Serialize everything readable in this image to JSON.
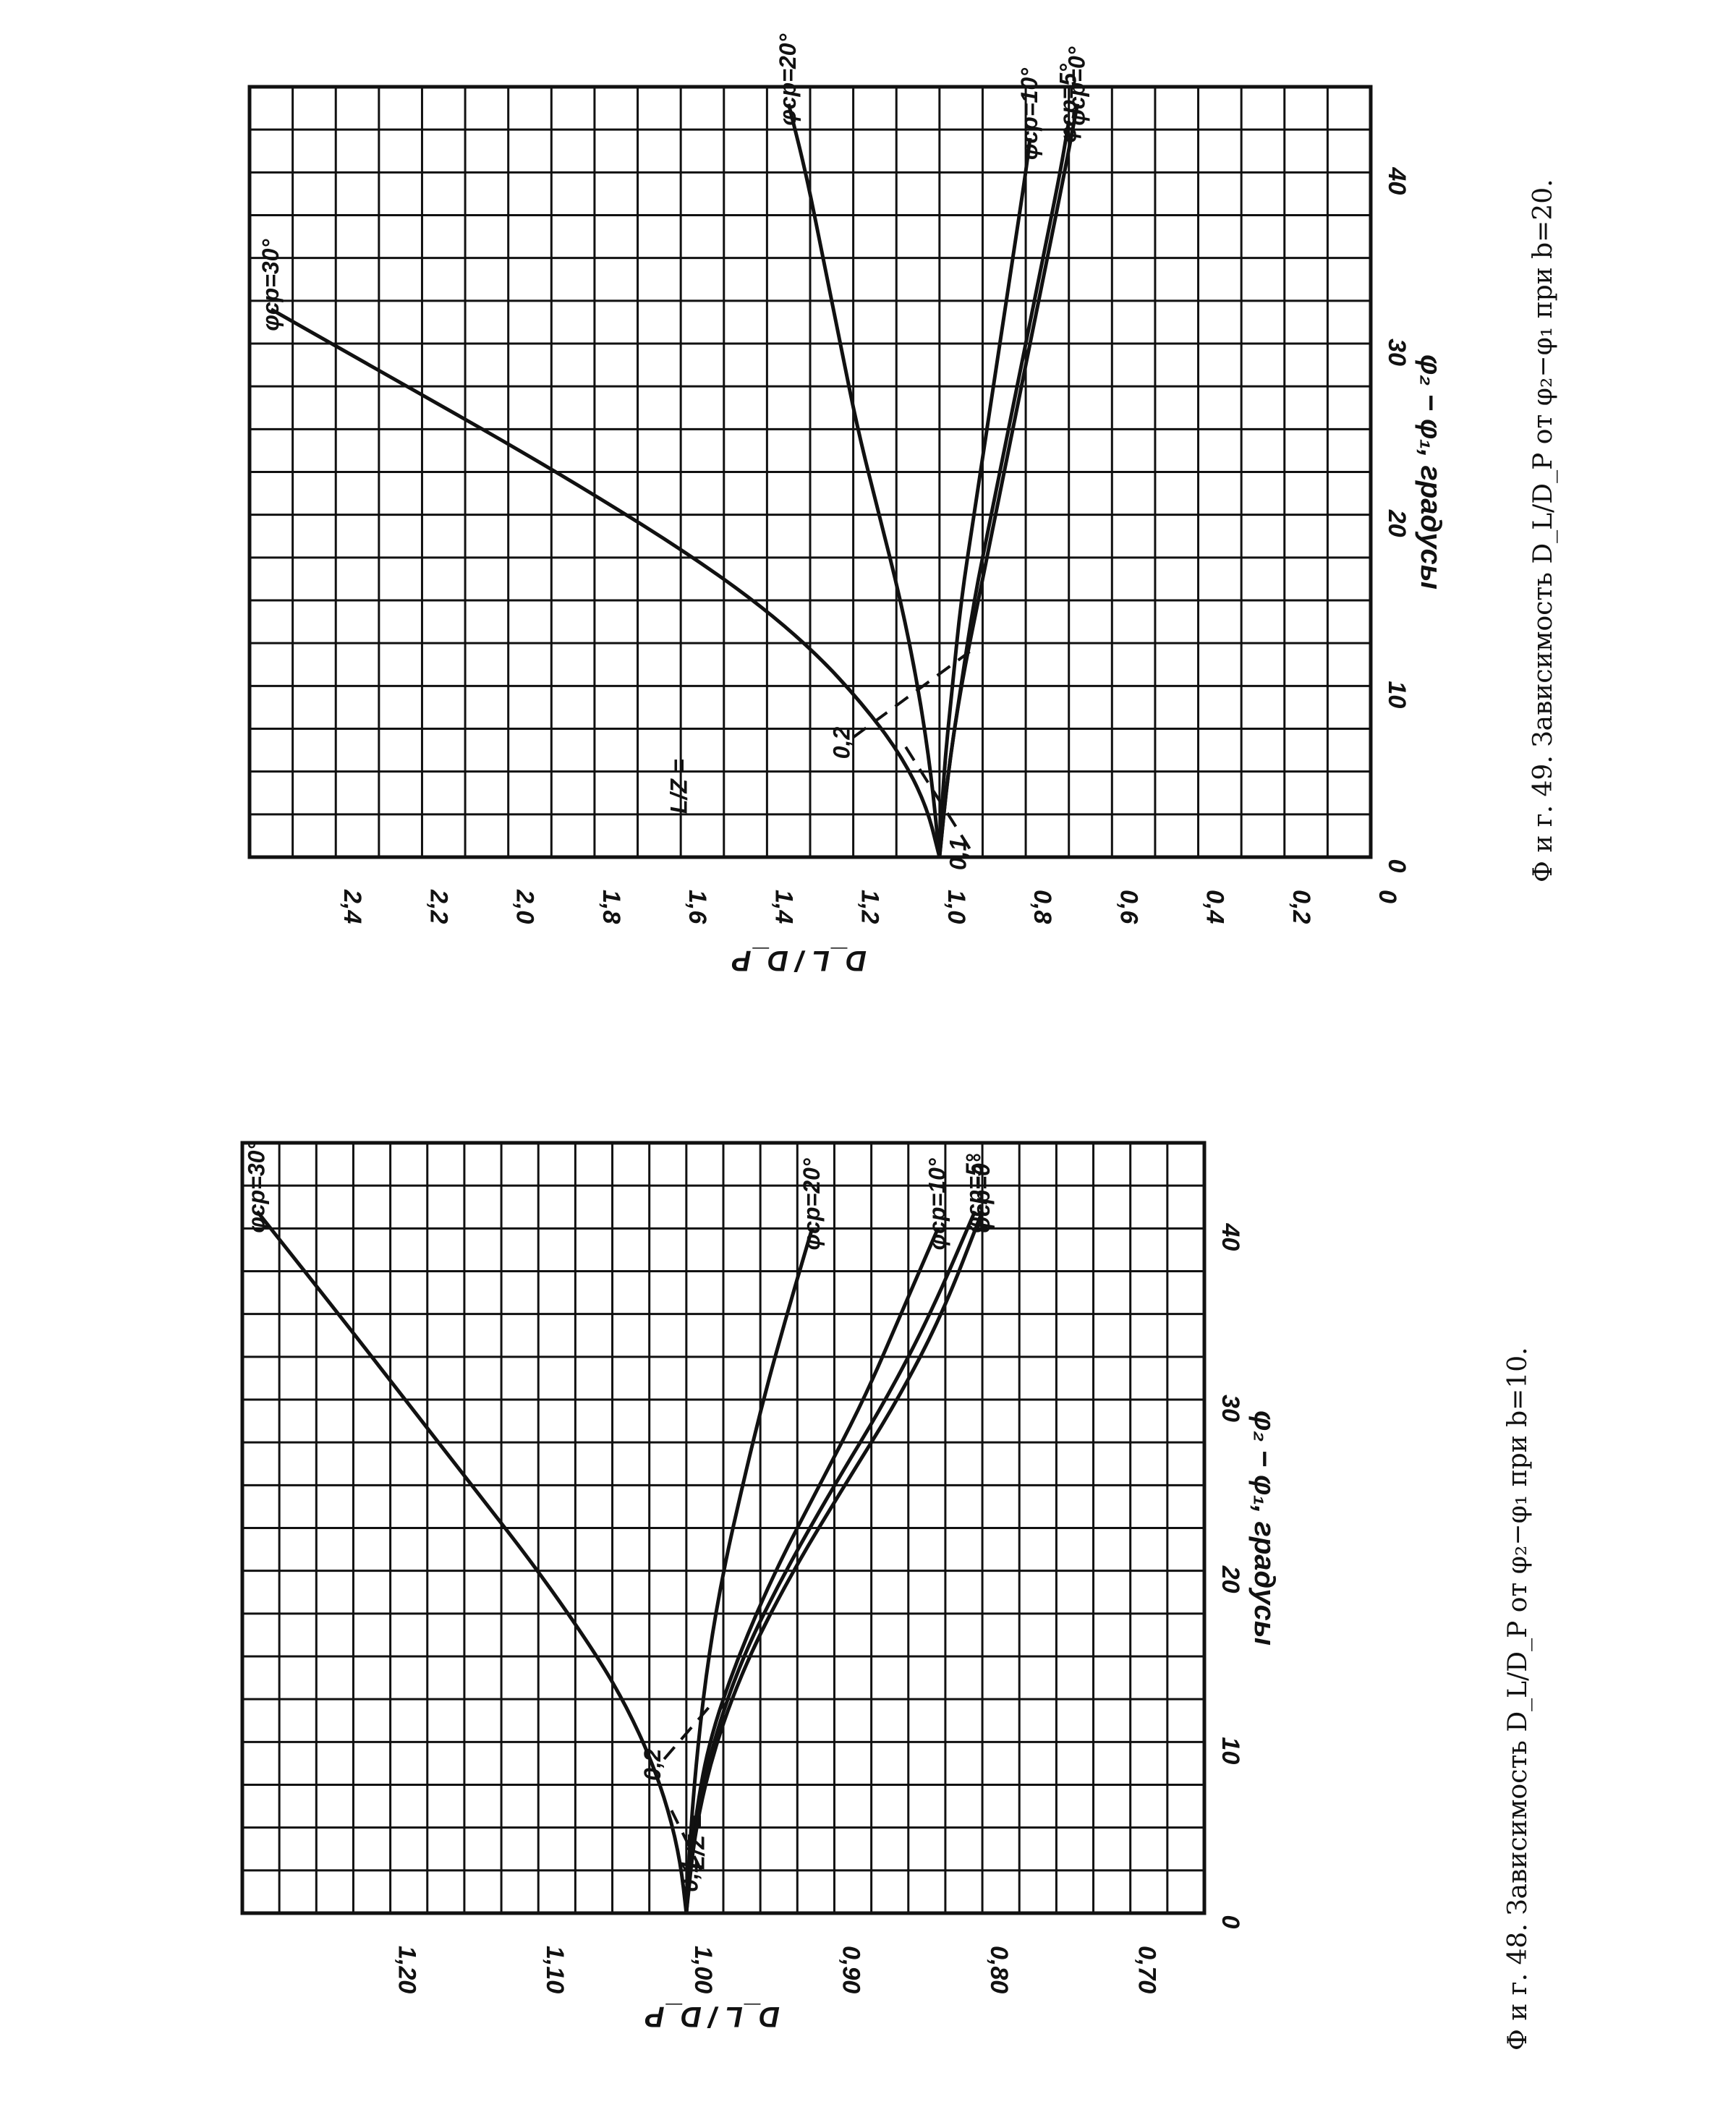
{
  "chart_data": [
    {
      "id": "fig49",
      "type": "line",
      "title": "Ф и г. 49. Зависимость D_L/D_P от φ₂−φ₁ при b=20.",
      "xlabel": "φ₂ − φ₁, градусы",
      "ylabel": "D_L / D_P",
      "xlim": [
        0,
        45
      ],
      "ylim": [
        0,
        2.6
      ],
      "x_ticks": [
        "0",
        "10",
        "20",
        "30",
        "40"
      ],
      "y_ticks": [
        "0",
        "0,2",
        "0,4",
        "0,6",
        "0,8",
        "1,0",
        "1,2",
        "1,4",
        "1,6",
        "1,8",
        "2,0",
        "2,2",
        "2,4"
      ],
      "grid": true,
      "lz_label": "L/Z =",
      "lz_values": [
        "0,1",
        "0,2"
      ],
      "series": [
        {
          "name": "φср=30°",
          "x": [
            0,
            3,
            6,
            9,
            12,
            15,
            18,
            21,
            24,
            27,
            30,
            32
          ],
          "y": [
            1.0,
            1.03,
            1.09,
            1.18,
            1.29,
            1.43,
            1.6,
            1.79,
            1.99,
            2.2,
            2.41,
            2.55
          ]
        },
        {
          "name": "φср=20°",
          "x": [
            0,
            5,
            10,
            15,
            20,
            25,
            30,
            35,
            40,
            44
          ],
          "y": [
            1.0,
            1.02,
            1.05,
            1.09,
            1.14,
            1.19,
            1.23,
            1.27,
            1.31,
            1.35
          ]
        },
        {
          "name": "φср=10°",
          "x": [
            0,
            5,
            10,
            15,
            20,
            25,
            30,
            35,
            40,
            42
          ],
          "y": [
            1.0,
            0.99,
            0.97,
            0.95,
            0.92,
            0.89,
            0.86,
            0.83,
            0.8,
            0.79
          ]
        },
        {
          "name": "φср=5°",
          "x": [
            0,
            5,
            10,
            15,
            20,
            25,
            30,
            35,
            40,
            43
          ],
          "y": [
            1.0,
            0.98,
            0.95,
            0.92,
            0.88,
            0.84,
            0.8,
            0.76,
            0.72,
            0.7
          ]
        },
        {
          "name": "φср=0°",
          "x": [
            0,
            5,
            10,
            15,
            20,
            25,
            30,
            35,
            40,
            44
          ],
          "y": [
            1.0,
            0.98,
            0.95,
            0.91,
            0.87,
            0.83,
            0.79,
            0.75,
            0.71,
            0.68
          ]
        }
      ],
      "lz_lines": [
        {
          "name": "0,1",
          "x": [
            0.5,
            6.5
          ],
          "y": [
            0.93,
            1.08
          ]
        },
        {
          "name": "0,2",
          "x": [
            7,
            12
          ],
          "y": [
            1.2,
            0.93
          ]
        }
      ]
    },
    {
      "id": "fig48",
      "type": "line",
      "title": "Ф и г. 48. Зависимость D_L/D_P от φ₂−φ₁ при b=10.",
      "xlabel": "φ₂ − φ₁, градусы",
      "ylabel": "D_L / D_P",
      "xlim": [
        0,
        45
      ],
      "ylim": [
        0.65,
        1.3
      ],
      "x_ticks": [
        "0",
        "10",
        "20",
        "30",
        "40"
      ],
      "y_ticks": [
        "0,70",
        "0,80",
        "0,90",
        "1,00",
        "1,10",
        "1,20"
      ],
      "grid": true,
      "lz_label": "L/Z =",
      "lz_values": [
        "0,1",
        "0,2"
      ],
      "series": [
        {
          "name": "φср=30°",
          "x": [
            0,
            3,
            6,
            9,
            12,
            15,
            20,
            25,
            30,
            35,
            41
          ],
          "y": [
            1.0,
            1.004,
            1.012,
            1.024,
            1.04,
            1.06,
            1.1,
            1.145,
            1.19,
            1.235,
            1.29
          ]
        },
        {
          "name": "φср=20°",
          "x": [
            0,
            5,
            10,
            15,
            20,
            25,
            30,
            35,
            40
          ],
          "y": [
            1.0,
            0.997,
            0.992,
            0.985,
            0.975,
            0.962,
            0.948,
            0.932,
            0.915
          ]
        },
        {
          "name": "φср=10°",
          "x": [
            0,
            5,
            10,
            15,
            20,
            25,
            30,
            35,
            40
          ],
          "y": [
            1.0,
            0.995,
            0.985,
            0.965,
            0.94,
            0.91,
            0.88,
            0.855,
            0.83
          ]
        },
        {
          "name": "φср=5°",
          "x": [
            0,
            5,
            10,
            15,
            20,
            25,
            30,
            35,
            41
          ],
          "y": [
            1.0,
            0.995,
            0.982,
            0.962,
            0.933,
            0.9,
            0.865,
            0.835,
            0.805
          ]
        },
        {
          "name": "φср=0°",
          "x": [
            0,
            5,
            10,
            15,
            20,
            25,
            30,
            35,
            41
          ],
          "y": [
            1.0,
            0.994,
            0.98,
            0.958,
            0.928,
            0.893,
            0.857,
            0.827,
            0.8
          ]
        }
      ],
      "lz_lines": [
        {
          "name": "0,1",
          "x": [
            2.5,
            6
          ],
          "y": [
            0.99,
            1.01
          ]
        },
        {
          "name": "0,2",
          "x": [
            9,
            12
          ],
          "y": [
            1.015,
            0.985
          ]
        }
      ]
    }
  ]
}
